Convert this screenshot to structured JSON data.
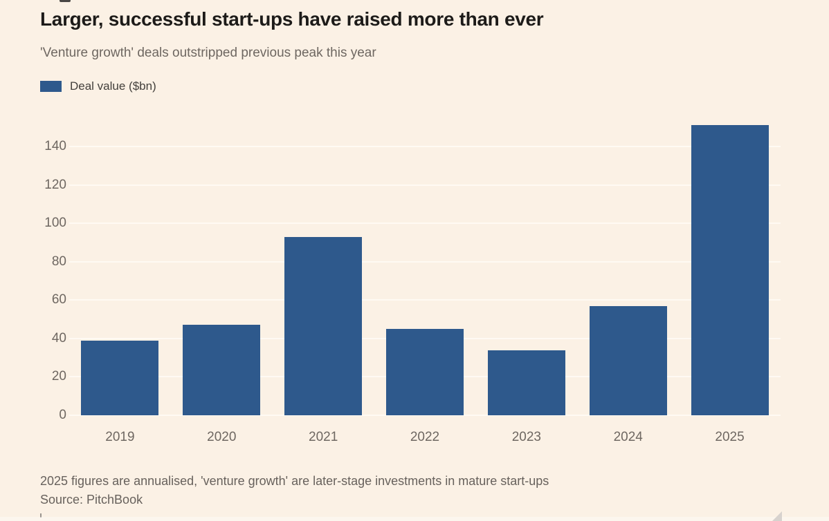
{
  "chart_data": {
    "type": "bar",
    "title": "Larger, successful start-ups have raised more than ever",
    "subtitle": "'Venture growth' deals outstripped previous peak this year",
    "legend": [
      {
        "label": "Deal value ($bn)",
        "color": "#2E598C"
      }
    ],
    "categories": [
      "2019",
      "2020",
      "2021",
      "2022",
      "2023",
      "2024",
      "2025"
    ],
    "series": [
      {
        "name": "Deal value ($bn)",
        "values": [
          39,
          47,
          93,
          45,
          34,
          57,
          151
        ]
      }
    ],
    "xlabel": "",
    "ylabel": "",
    "yticks": [
      0,
      20,
      40,
      60,
      80,
      100,
      120,
      140
    ],
    "ylim": [
      0,
      163
    ],
    "grid": true,
    "legend_position": "top-left",
    "background": "#FBF1E5"
  },
  "footer": {
    "note": "2025 figures are annualised, 'venture growth' are later-stage investments in mature start-ups",
    "source": "Source: PitchBook"
  }
}
